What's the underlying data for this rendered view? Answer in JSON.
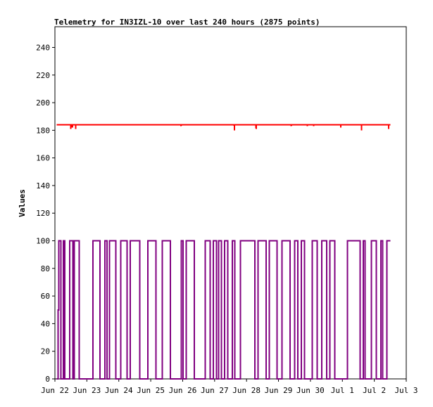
{
  "chart_data": {
    "type": "line",
    "title": "Telemetry for IN3IZL-10 over last 240 hours (2875 points)",
    "ylabel": "Values",
    "xlabel": "",
    "ylim": [
      0,
      255
    ],
    "xlim": [
      "Jun 22",
      "Jul 3"
    ],
    "y_ticks": [
      0,
      20,
      40,
      60,
      80,
      100,
      120,
      140,
      160,
      180,
      200,
      220,
      240
    ],
    "x_ticks": [
      "Jun 22",
      "Jun 23",
      "Jun 24",
      "Jun 25",
      "Jun 26",
      "Jun 27",
      "Jun 28",
      "Jun 29",
      "Jun 30",
      "Jul 1",
      "Jul 2",
      "Jul 3"
    ],
    "grid": false,
    "legend": "none",
    "series": [
      {
        "color": "#ff0000",
        "baseline": 184,
        "x": [
          0.05,
          0.62,
          0.75,
          10.0
        ],
        "y": [
          184,
          184,
          184,
          184
        ],
        "dips": [
          {
            "x": 0.5,
            "y": 181
          },
          {
            "x": 0.55,
            "y": 182
          },
          {
            "x": 0.65,
            "y": 181
          },
          {
            "x": 3.95,
            "y": 183
          },
          {
            "x": 5.62,
            "y": 180
          },
          {
            "x": 6.3,
            "y": 181
          },
          {
            "x": 7.4,
            "y": 183
          },
          {
            "x": 7.9,
            "y": 183
          },
          {
            "x": 8.1,
            "y": 183
          },
          {
            "x": 8.95,
            "y": 182
          },
          {
            "x": 9.6,
            "y": 180
          },
          {
            "x": 10.45,
            "y": 181
          }
        ],
        "x_end": 10.5
      },
      {
        "color": "#800080",
        "levels": [
          0,
          100
        ],
        "x": [
          0.05,
          0.1,
          0.12,
          0.18,
          0.19,
          0.25,
          0.26,
          0.3,
          0.31,
          0.45,
          0.46,
          0.55,
          0.56,
          0.6,
          0.61,
          0.75,
          0.76,
          1.18,
          1.19,
          1.4,
          1.41,
          1.55,
          1.56,
          1.62,
          1.63,
          1.7,
          1.71,
          1.9,
          1.91,
          2.05,
          2.06,
          2.25,
          2.26,
          2.35,
          2.36,
          2.65,
          2.66,
          2.9,
          2.91,
          3.15,
          3.16,
          3.35,
          3.36,
          3.6,
          3.61,
          3.95,
          3.96,
          4.0,
          4.01,
          4.1,
          4.11,
          4.35,
          4.36,
          4.7,
          4.71,
          4.85,
          4.86,
          4.95,
          4.96,
          5.05,
          5.06,
          5.12,
          5.13,
          5.2,
          5.21,
          5.3,
          5.31,
          5.4,
          5.41,
          5.55,
          5.56,
          5.62,
          5.63,
          5.8,
          5.81,
          6.25,
          6.26,
          6.35,
          6.36,
          6.6,
          6.61,
          6.7,
          6.71,
          6.95,
          6.96,
          7.1,
          7.11,
          7.35,
          7.36,
          7.5,
          7.51,
          7.6,
          7.61,
          7.7,
          7.71,
          7.8,
          7.81,
          8.05,
          8.06,
          8.2,
          8.21,
          8.35,
          8.36,
          8.5,
          8.51,
          8.6,
          8.61,
          8.75,
          8.76,
          9.15,
          9.16,
          9.55,
          9.56,
          9.65,
          9.66,
          9.7,
          9.71,
          9.9,
          9.91,
          10.05,
          10.06,
          10.2,
          10.21,
          10.25,
          10.26,
          10.38,
          10.39,
          10.5
        ],
        "y": [
          0,
          50,
          100,
          100,
          0,
          0,
          100,
          100,
          0,
          0,
          100,
          100,
          0,
          0,
          100,
          100,
          0,
          0,
          100,
          100,
          0,
          0,
          100,
          100,
          0,
          0,
          100,
          100,
          0,
          0,
          100,
          100,
          0,
          0,
          100,
          100,
          0,
          0,
          100,
          100,
          0,
          0,
          100,
          100,
          0,
          0,
          100,
          100,
          0,
          0,
          100,
          100,
          0,
          0,
          100,
          100,
          0,
          0,
          100,
          100,
          0,
          0,
          100,
          100,
          0,
          0,
          100,
          100,
          0,
          0,
          100,
          100,
          0,
          0,
          100,
          100,
          0,
          0,
          100,
          100,
          0,
          0,
          100,
          100,
          0,
          0,
          100,
          100,
          0,
          0,
          100,
          100,
          0,
          0,
          100,
          100,
          0,
          0,
          100,
          100,
          0,
          0,
          100,
          100,
          0,
          0,
          100,
          100,
          0,
          0,
          100,
          100,
          0,
          0,
          100,
          100,
          0,
          0,
          100,
          100,
          0,
          0,
          100,
          100,
          0,
          0,
          100,
          100
        ]
      }
    ]
  }
}
